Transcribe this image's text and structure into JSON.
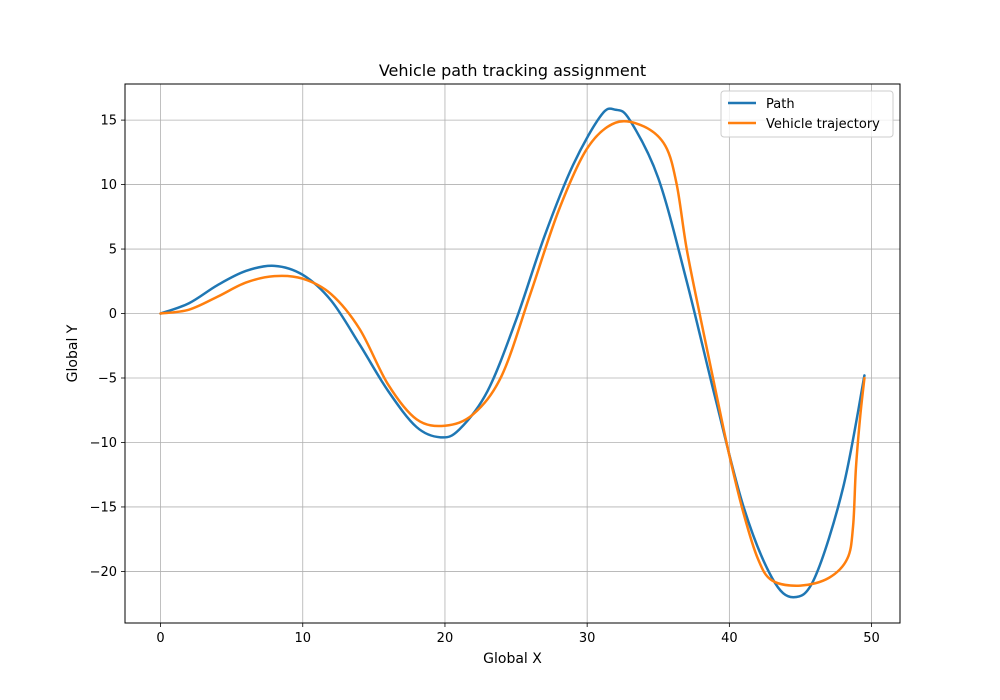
{
  "chart_data": {
    "type": "line",
    "title": "Vehicle path tracking assignment",
    "xlabel": "Global X",
    "ylabel": "Global Y",
    "xlim": [
      -2.5,
      52.0
    ],
    "ylim": [
      -24.0,
      17.8
    ],
    "xticks": [
      0,
      10,
      20,
      30,
      40,
      50
    ],
    "xtick_labels": [
      "0",
      "10",
      "20",
      "30",
      "40",
      "50"
    ],
    "yticks": [
      -20,
      -15,
      -10,
      -5,
      0,
      5,
      10,
      15
    ],
    "ytick_labels": [
      "−20",
      "−15",
      "−10",
      "−5",
      "0",
      "5",
      "10",
      "15"
    ],
    "grid": true,
    "legend_position": "top-right",
    "series": [
      {
        "name": "Path",
        "color": "#1f77b4",
        "points": [
          [
            0,
            0
          ],
          [
            2,
            0.8
          ],
          [
            4,
            2.2
          ],
          [
            6,
            3.3
          ],
          [
            8,
            3.7
          ],
          [
            10,
            3.0
          ],
          [
            12,
            1.0
          ],
          [
            14,
            -2.4
          ],
          [
            16,
            -6.0
          ],
          [
            18,
            -8.8
          ],
          [
            19.7,
            -9.6
          ],
          [
            21,
            -9.0
          ],
          [
            23,
            -6.0
          ],
          [
            25,
            -0.5
          ],
          [
            27,
            6.0
          ],
          [
            29,
            11.5
          ],
          [
            31,
            15.4
          ],
          [
            32,
            15.8
          ],
          [
            33,
            15.0
          ],
          [
            35,
            10.5
          ],
          [
            37,
            2.5
          ],
          [
            39,
            -6.5
          ],
          [
            41,
            -15.0
          ],
          [
            43,
            -20.5
          ],
          [
            44.5,
            -22.0
          ],
          [
            46,
            -20.5
          ],
          [
            48,
            -13.5
          ],
          [
            49.5,
            -4.8
          ]
        ]
      },
      {
        "name": "Vehicle trajectory",
        "color": "#ff7f0e",
        "points": [
          [
            0,
            0
          ],
          [
            2,
            0.3
          ],
          [
            4,
            1.3
          ],
          [
            6,
            2.4
          ],
          [
            8,
            2.9
          ],
          [
            10,
            2.7
          ],
          [
            12,
            1.5
          ],
          [
            14,
            -1.2
          ],
          [
            16,
            -5.5
          ],
          [
            18,
            -8.2
          ],
          [
            20,
            -8.7
          ],
          [
            22,
            -7.8
          ],
          [
            24,
            -4.8
          ],
          [
            26,
            1.5
          ],
          [
            28,
            8.0
          ],
          [
            30,
            12.8
          ],
          [
            32,
            14.8
          ],
          [
            34,
            14.5
          ],
          [
            35.5,
            13.0
          ],
          [
            36.3,
            10.0
          ],
          [
            37,
            5.0
          ],
          [
            38,
            -0.5
          ],
          [
            39,
            -5.8
          ],
          [
            40,
            -11.0
          ],
          [
            41,
            -15.5
          ],
          [
            42,
            -19.0
          ],
          [
            43,
            -20.7
          ],
          [
            45,
            -21.1
          ],
          [
            47,
            -20.5
          ],
          [
            48.3,
            -19.0
          ],
          [
            48.7,
            -16.5
          ],
          [
            48.9,
            -12.0
          ],
          [
            49.2,
            -8.0
          ],
          [
            49.5,
            -5.0
          ]
        ]
      }
    ]
  }
}
